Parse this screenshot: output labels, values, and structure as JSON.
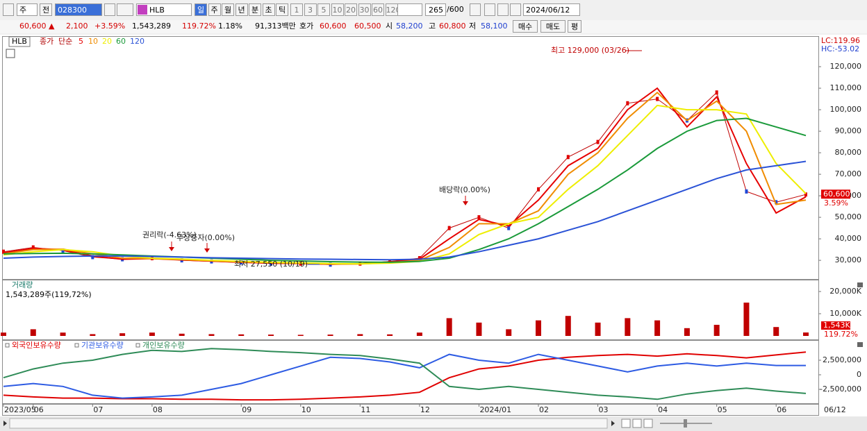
{
  "toolbar": {
    "period_unit": "주",
    "prev": "전",
    "code": "028300",
    "name": "HLB",
    "periods": [
      "일",
      "주",
      "월",
      "년",
      "분",
      "초",
      "틱"
    ],
    "intervals": [
      "1",
      "3",
      "5",
      "10",
      "20",
      "30",
      "60",
      "120"
    ],
    "count": "265",
    "count_max": "/600",
    "date": "2024/06/12"
  },
  "quote": {
    "price": "60,600 ▲",
    "change": "2,100",
    "change_pct": "+3.59%",
    "volume": "1,543,289",
    "volume_ratio": "119.72%",
    "turnover": "1.18%",
    "amount": "91,313백만",
    "ask_label": "호가",
    "ask": "60,600",
    "bid": "60,500",
    "open_label": "시",
    "open": "58,200",
    "high_label": "고",
    "high": "60,800",
    "low_label": "저",
    "low": "58,100",
    "buy": "매수",
    "sell": "매도",
    "avg": "평"
  },
  "x_axis": {
    "categories": [
      "2023/05",
      "06",
      null,
      "07",
      null,
      "08",
      null,
      null,
      "09",
      null,
      "10",
      null,
      "11",
      null,
      "12",
      null,
      "2024/01",
      null,
      "02",
      null,
      "03",
      null,
      "04",
      null,
      "05",
      null,
      "06",
      null
    ],
    "end_label": "06/12"
  },
  "chart_data": [
    {
      "type": "line",
      "title": "HLB",
      "ma_type": "단순",
      "lc_label": "LC:119.96",
      "hc_label": "HC:-53.02",
      "last_price_label": "60,600",
      "last_change_label": "3.59%",
      "annotations": [
        "최고 129,000 (03/26)",
        "최저 27,550 (10/19)",
        "권리락(-4.63%)",
        "무상증자(0.00%)",
        "배당락(0.00%)"
      ],
      "ylim": [
        21000,
        129700
      ],
      "yticks": [
        {
          "value": 30000,
          "label": "30,000"
        },
        {
          "value": 40000,
          "label": "40,000"
        },
        {
          "value": 50000,
          "label": "50,000"
        },
        {
          "value": 60000,
          "label": "60,000"
        },
        {
          "value": 70000,
          "label": "70,000"
        },
        {
          "value": 80000,
          "label": "80,000"
        },
        {
          "value": 90000,
          "label": "90,000"
        },
        {
          "value": 100000,
          "label": "100,000"
        },
        {
          "value": 110000,
          "label": "110,000"
        },
        {
          "value": 120000,
          "label": "120,000"
        }
      ],
      "grid": false,
      "series": [
        {
          "name": "종가",
          "color": "#c00000",
          "values": [
            34000,
            36000,
            34500,
            31500,
            30500,
            31000,
            30000,
            29500,
            29000,
            28500,
            28500,
            28000,
            28500,
            29500,
            31000,
            45000,
            50000,
            45000,
            63000,
            78000,
            85000,
            103000,
            105000,
            95000,
            108000,
            62000,
            57000,
            60600
          ]
        },
        {
          "name": "5",
          "color": "#e60000",
          "values": [
            33500,
            35500,
            35000,
            32000,
            30500,
            30800,
            30200,
            29600,
            29100,
            28700,
            28500,
            28200,
            28400,
            29300,
            30500,
            40000,
            49000,
            46000,
            58000,
            74000,
            82000,
            100000,
            110000,
            92000,
            106000,
            75000,
            52000,
            59500
          ]
        },
        {
          "name": "10",
          "color": "#f08c00",
          "values": [
            33000,
            35000,
            35200,
            33000,
            31000,
            30800,
            30400,
            29800,
            29300,
            28900,
            28600,
            28300,
            28300,
            29000,
            30000,
            36000,
            47000,
            47000,
            53000,
            70000,
            80000,
            96000,
            108000,
            95000,
            104000,
            90000,
            56000,
            58000
          ]
        },
        {
          "name": "20",
          "color": "#eeee00",
          "values": [
            32500,
            34000,
            35000,
            34000,
            32000,
            31000,
            30600,
            30000,
            29500,
            29100,
            28800,
            28500,
            28400,
            28700,
            29500,
            33000,
            42000,
            47000,
            50000,
            63000,
            74000,
            88000,
            102000,
            100000,
            100000,
            98000,
            75000,
            61000
          ]
        },
        {
          "name": "60",
          "color": "#1a9a3a",
          "values": [
            33000,
            33200,
            33300,
            33000,
            32500,
            32000,
            31500,
            31000,
            30500,
            30000,
            29700,
            29400,
            29200,
            29100,
            29500,
            31000,
            35000,
            40000,
            47000,
            55000,
            63000,
            72000,
            82000,
            90000,
            95000,
            96000,
            92000,
            88000
          ]
        },
        {
          "name": "120",
          "color": "#2a52d6",
          "values": [
            31000,
            31500,
            31800,
            32000,
            32000,
            31800,
            31500,
            31200,
            31000,
            30800,
            30600,
            30500,
            30400,
            30300,
            30500,
            31500,
            34000,
            37000,
            40000,
            44000,
            48000,
            53000,
            58000,
            63000,
            68000,
            72000,
            74000,
            76000
          ]
        }
      ]
    },
    {
      "type": "bar",
      "title": "거래량",
      "subtitle": "1,543,289주(119,72%)",
      "last_label": "1,543K",
      "ratio_label": "119.72%",
      "ylim": [
        0,
        22500
      ],
      "yticks": [
        {
          "value": 10000,
          "label": "10,000K"
        },
        {
          "value": 20000,
          "label": "20,000K"
        }
      ],
      "grid": false,
      "color": "#c00000",
      "values": [
        1500,
        3000,
        1500,
        800,
        1200,
        1500,
        1000,
        800,
        700,
        600,
        500,
        600,
        800,
        700,
        1500,
        8000,
        6000,
        3000,
        7000,
        9000,
        6000,
        8000,
        7000,
        3500,
        5000,
        15000,
        4000,
        1543
      ]
    },
    {
      "type": "line",
      "ylim": [
        -4760000,
        5000000
      ],
      "yticks": [
        {
          "value": 2500000,
          "label": "2,500,000"
        },
        0,
        {
          "value": -2500000,
          "label": "-2,500,000"
        }
      ],
      "grid": false,
      "series": [
        {
          "name": "외국인보유수량",
          "color": "#e00000",
          "values": [
            -3500000,
            -3800000,
            -4000000,
            -4000000,
            -4100000,
            -4100000,
            -4200000,
            -4200000,
            -4300000,
            -4300000,
            -4200000,
            -4000000,
            -3800000,
            -3500000,
            -3000000,
            -500000,
            1000000,
            1500000,
            2500000,
            3000000,
            3300000,
            3500000,
            3200000,
            3600000,
            3300000,
            2900000,
            3400000,
            3900000
          ]
        },
        {
          "name": "기관보유수량",
          "color": "#2d5be3",
          "values": [
            -2000000,
            -1500000,
            -2000000,
            -3500000,
            -4000000,
            -3800000,
            -3500000,
            -2500000,
            -1500000,
            0,
            1500000,
            3000000,
            2800000,
            2200000,
            1200000,
            3500000,
            2500000,
            2000000,
            3500000,
            2500000,
            1500000,
            500000,
            1500000,
            2000000,
            1500000,
            2000000,
            1600000,
            1600000
          ]
        },
        {
          "name": "개인보유수량",
          "color": "#2e8b57",
          "values": [
            -500000,
            1000000,
            2000000,
            2500000,
            3500000,
            4200000,
            4000000,
            4500000,
            4300000,
            4000000,
            3800000,
            3500000,
            3300000,
            2700000,
            2000000,
            -2000000,
            -2500000,
            -2000000,
            -2500000,
            -3000000,
            -3500000,
            -3800000,
            -4200000,
            -3300000,
            -2700000,
            -2300000,
            -2800000,
            -3200000
          ]
        }
      ]
    }
  ]
}
